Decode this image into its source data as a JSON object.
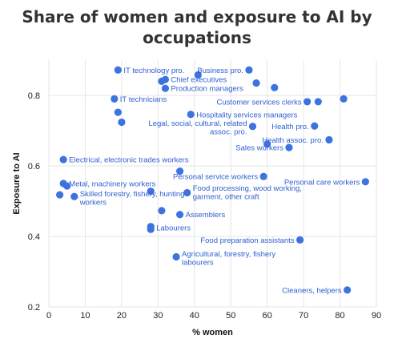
{
  "chart_data": {
    "type": "scatter",
    "title": "Share of women and exposure to AI by occupations",
    "xlabel": "% women",
    "ylabel": "Exposure to AI",
    "xlim": [
      0,
      90
    ],
    "ylim": [
      0.2,
      0.9
    ],
    "xticks": [
      0,
      10,
      20,
      30,
      40,
      50,
      60,
      70,
      80,
      90
    ],
    "yticks": [
      0.2,
      0.4,
      0.6,
      0.8
    ],
    "grid": true,
    "point_color": "#3d73df",
    "label_color": "#2f5fd0",
    "points": [
      {
        "x": 19,
        "y": 0.872,
        "label": "IT technology pro."
      },
      {
        "x": 41,
        "y": 0.858,
        "label": ""
      },
      {
        "x": 55,
        "y": 0.872,
        "label": "Business pro."
      },
      {
        "x": 32,
        "y": 0.845,
        "label": "Chief executives"
      },
      {
        "x": 31,
        "y": 0.84,
        "label": ""
      },
      {
        "x": 57,
        "y": 0.835,
        "label": ""
      },
      {
        "x": 62,
        "y": 0.822,
        "label": ""
      },
      {
        "x": 32,
        "y": 0.82,
        "label": "Production managers"
      },
      {
        "x": 18,
        "y": 0.79,
        "label": "IT technicians"
      },
      {
        "x": 81,
        "y": 0.79,
        "label": ""
      },
      {
        "x": 71,
        "y": 0.782,
        "label": "Customer services clerks"
      },
      {
        "x": 74,
        "y": 0.782,
        "label": ""
      },
      {
        "x": 19,
        "y": 0.752,
        "label": ""
      },
      {
        "x": 39,
        "y": 0.746,
        "label": "Hospitality services managers"
      },
      {
        "x": 20,
        "y": 0.724,
        "label": ""
      },
      {
        "x": 56,
        "y": 0.712,
        "label": "Legal, social, cultural, related assoc. pro."
      },
      {
        "x": 73,
        "y": 0.713,
        "label": "Health pro."
      },
      {
        "x": 77,
        "y": 0.674,
        "label": "Health assoc. pro."
      },
      {
        "x": 60,
        "y": 0.662,
        "label": ""
      },
      {
        "x": 66,
        "y": 0.652,
        "label": "Sales workers"
      },
      {
        "x": 4,
        "y": 0.618,
        "label": "Electrical, electronic trades workers"
      },
      {
        "x": 36,
        "y": 0.585,
        "label": ""
      },
      {
        "x": 59,
        "y": 0.57,
        "label": "Personal service workers"
      },
      {
        "x": 87,
        "y": 0.555,
        "label": "Personal care workers"
      },
      {
        "x": 4,
        "y": 0.55,
        "label": "Metal, machinery workers"
      },
      {
        "x": 5,
        "y": 0.543,
        "label": ""
      },
      {
        "x": 28,
        "y": 0.528,
        "label": ""
      },
      {
        "x": 38,
        "y": 0.524,
        "label": "Food processing, wood working, garment, other craft"
      },
      {
        "x": 3,
        "y": 0.518,
        "label": ""
      },
      {
        "x": 7,
        "y": 0.513,
        "label": "Skilled forestry, fishery, hunting workers"
      },
      {
        "x": 31,
        "y": 0.473,
        "label": ""
      },
      {
        "x": 36,
        "y": 0.462,
        "label": "Assemblers"
      },
      {
        "x": 28,
        "y": 0.428,
        "label": ""
      },
      {
        "x": 28,
        "y": 0.42,
        "label": "Labourers"
      },
      {
        "x": 69,
        "y": 0.39,
        "label": "Food preparation assistants"
      },
      {
        "x": 35,
        "y": 0.342,
        "label": "Agricultural, forestry, fishery labourers"
      },
      {
        "x": 82,
        "y": 0.248,
        "label": "Cleaners, helpers"
      }
    ]
  }
}
